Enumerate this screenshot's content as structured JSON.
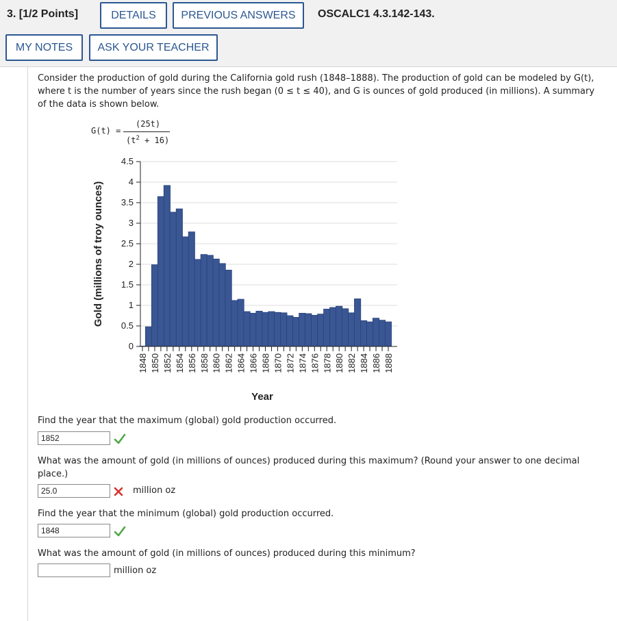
{
  "header": {
    "question_number": "3. [1/2 Points]",
    "details_label": "DETAILS",
    "previous_answers_label": "PREVIOUS ANSWERS",
    "problem_code": "OSCALC1 4.3.142-143.",
    "my_notes_label": "MY NOTES",
    "ask_teacher_label": "ASK YOUR TEACHER"
  },
  "intro": {
    "line1": "Consider the production of gold during the California gold rush (1848–1888). The production of gold can be modeled by G(t),",
    "line2": "where t is the number of years since the rush began (0 ≤ t ≤ 40), and G is ounces of gold produced (in millions). A summary",
    "line3": "of the data is shown below."
  },
  "formula": {
    "lhs": "G(t) =",
    "numerator": "(25t)",
    "denominator_prefix": "(t",
    "exponent": "2",
    "denominator_suffix": " + 16)"
  },
  "chart_data": {
    "type": "bar",
    "xlabel": "Year",
    "ylabel": "Gold (millions of troy ounces)",
    "ylim": [
      0,
      4.5
    ],
    "yticks": [
      "0",
      "0.5",
      "1",
      "1.5",
      "2",
      "2.5",
      "3",
      "3.5",
      "4",
      "4.5"
    ],
    "xtick_labels": [
      "1848",
      "1850",
      "1852",
      "1854",
      "1856",
      "1858",
      "1860",
      "1862",
      "1864",
      "1866",
      "1868",
      "1870",
      "1872",
      "1874",
      "1876",
      "1878",
      "1880",
      "1882",
      "1884",
      "1886",
      "1888"
    ],
    "grid": true,
    "bar_color": "#3a5693",
    "categories": [
      1848,
      1849,
      1850,
      1851,
      1852,
      1853,
      1854,
      1855,
      1856,
      1857,
      1858,
      1859,
      1860,
      1861,
      1862,
      1863,
      1864,
      1865,
      1866,
      1867,
      1868,
      1869,
      1870,
      1871,
      1872,
      1873,
      1874,
      1875,
      1876,
      1877,
      1878,
      1879,
      1880,
      1881,
      1882,
      1883,
      1884,
      1885,
      1886,
      1887,
      1888
    ],
    "values": [
      0.01,
      0.48,
      1.99,
      3.65,
      3.92,
      3.27,
      3.35,
      2.67,
      2.79,
      2.12,
      2.24,
      2.22,
      2.13,
      2.02,
      1.86,
      1.12,
      1.15,
      0.85,
      0.81,
      0.86,
      0.83,
      0.85,
      0.83,
      0.82,
      0.75,
      0.71,
      0.81,
      0.8,
      0.76,
      0.79,
      0.91,
      0.95,
      0.98,
      0.92,
      0.82,
      1.16,
      0.63,
      0.6,
      0.69,
      0.64,
      0.6
    ]
  },
  "questions": [
    {
      "prompt": "Find the year that the maximum (global) gold production occurred.",
      "answer": "1852",
      "status": "correct",
      "unit": ""
    },
    {
      "prompt_line1": "What was the amount of gold (in millions of ounces) produced during this maximum? (Round your answer to one decimal",
      "prompt_line2": "place.)",
      "answer": "25.0",
      "status": "incorrect",
      "unit": "million oz"
    },
    {
      "prompt": "Find the year that the minimum (global) gold production occurred.",
      "answer": "1848",
      "status": "correct",
      "unit": ""
    },
    {
      "prompt": "What was the amount of gold (in millions of ounces) produced during this minimum?",
      "answer": "",
      "status": "unanswered",
      "unit": "million oz"
    }
  ],
  "colors": {
    "button_border": "#2b5790",
    "correct": "#4fa844",
    "incorrect": "#d9322b"
  },
  "icons": {
    "correct": "checkmark-icon",
    "incorrect": "x-mark-icon"
  }
}
